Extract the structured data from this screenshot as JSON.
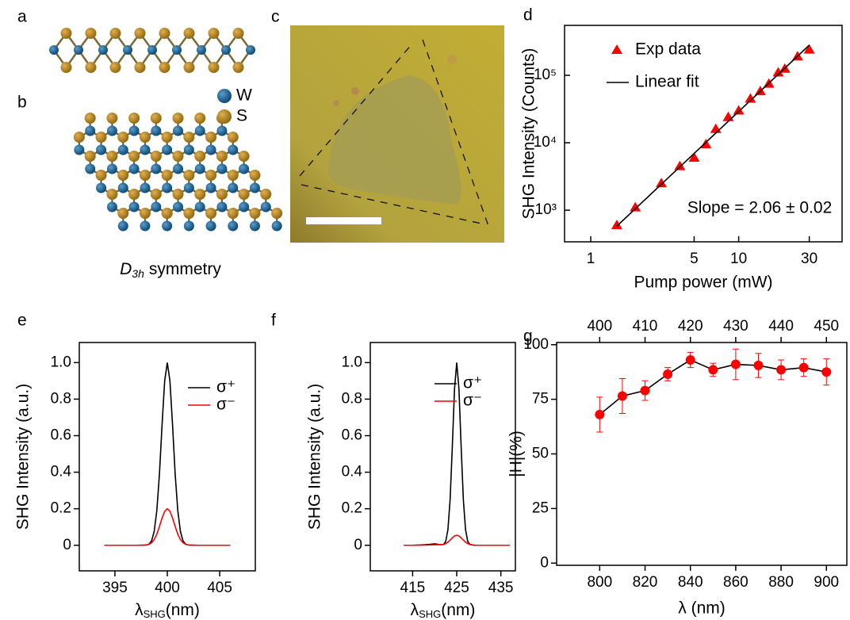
{
  "panel_labels": [
    "a",
    "b",
    "c",
    "d",
    "e",
    "f",
    "g"
  ],
  "structure": {
    "legend": [
      "W",
      "S"
    ],
    "symmetry": {
      "main": "D",
      "sub": "3h",
      "rest": "symmetry"
    }
  },
  "chart_data": [
    {
      "type": "scatter",
      "xscale": "log",
      "yscale": "log",
      "xlabel": "Pump power (mW)",
      "ylabel": "SHG Intensity (Counts)",
      "xlim": [
        0.665,
        50
      ],
      "ylim": [
        340,
        550000
      ],
      "xticks": [
        1,
        5,
        10,
        30
      ],
      "yticks": [
        {
          "value": 1000,
          "label": "10³"
        },
        {
          "value": 10000,
          "label": "10⁴"
        },
        {
          "value": 100000,
          "label": "10⁵"
        }
      ],
      "legend": "upper left",
      "annotation": "Slope = 2.06 ± 0.02",
      "series": [
        {
          "name": "Exp data",
          "type": "scatter",
          "marker": "triangle",
          "color": "#ff0000",
          "x": [
            1.5,
            2,
            3,
            4,
            5,
            6,
            7,
            8.5,
            10,
            12,
            14,
            16,
            18.5,
            20.5,
            25,
            30
          ],
          "values": [
            600,
            1100,
            2500,
            4500,
            6000,
            9500,
            16000,
            24000,
            30000,
            45000,
            58000,
            75000,
            110000,
            125000,
            190000,
            240000
          ]
        },
        {
          "name": "Linear fit",
          "type": "line",
          "color": "#000000",
          "x": [
            1.5,
            30
          ],
          "values": [
            580,
            280000
          ]
        }
      ]
    },
    {
      "type": "line",
      "xlabel": {
        "main": "λ",
        "sub": "SHG",
        "rest": "(nm)"
      },
      "ylabel": "SHG Intensity (a.u.)",
      "xlim": [
        391.6,
        408.4
      ],
      "ylim": [
        -0.14,
        1.11
      ],
      "xticks": [
        395,
        400,
        405
      ],
      "yticks": [
        0,
        0.2,
        0.4,
        0.6,
        0.8,
        {
          "value": 1,
          "label": "1.0"
        }
      ],
      "legend": "upper right",
      "x": [
        394,
        395,
        396,
        397,
        397.5,
        398,
        398.25,
        398.5,
        398.75,
        399,
        399.25,
        399.5,
        399.75,
        400,
        400.25,
        400.5,
        400.75,
        401,
        401.25,
        401.5,
        401.75,
        402,
        402.5,
        403,
        404,
        405,
        406
      ],
      "series": [
        {
          "name": "σ⁺",
          "color": "#000000",
          "values": [
            0,
            0,
            0,
            0,
            0,
            0.001,
            0.006,
            0.024,
            0.076,
            0.19,
            0.39,
            0.66,
            0.9,
            1,
            0.9,
            0.66,
            0.39,
            0.19,
            0.076,
            0.024,
            0.006,
            0.001,
            0,
            0,
            0,
            0,
            0
          ]
        },
        {
          "name": "σ⁻",
          "color": "#ff0000",
          "values": [
            0,
            0,
            0,
            0,
            0.001,
            0.002,
            0.005,
            0.014,
            0.031,
            0.061,
            0.103,
            0.149,
            0.186,
            0.2,
            0.186,
            0.149,
            0.103,
            0.061,
            0.031,
            0.014,
            0.005,
            0.002,
            0.001,
            0,
            0,
            0,
            0
          ]
        }
      ]
    },
    {
      "type": "line",
      "xlabel": {
        "main": "λ",
        "sub": "SHG",
        "rest": "(nm)"
      },
      "ylabel": "SHG Intensity (a.u.)",
      "xlim": [
        405.4,
        438.3
      ],
      "ylim": [
        -0.14,
        1.11
      ],
      "xticks": [
        415,
        425,
        435
      ],
      "yticks": [
        0,
        0.2,
        0.4,
        0.6,
        0.8,
        {
          "value": 1,
          "label": "1.0"
        }
      ],
      "legend": "upper right",
      "x": [
        413,
        415,
        417,
        419,
        420,
        421,
        422,
        422.5,
        423,
        423.5,
        424,
        424.5,
        425,
        425.5,
        426,
        426.5,
        427,
        427.5,
        428,
        429,
        430,
        431,
        433,
        435,
        437
      ],
      "series": [
        {
          "name": "σ⁺",
          "color": "#000000",
          "values": [
            0,
            0,
            0.002,
            0.005,
            0.008,
            0.004,
            0.004,
            0.021,
            0.085,
            0.25,
            0.54,
            0.857,
            1,
            0.857,
            0.54,
            0.25,
            0.085,
            0.021,
            0.004,
            0,
            0,
            0,
            0,
            0,
            0
          ]
        },
        {
          "name": "σ⁻",
          "color": "#ff0000",
          "values": [
            0,
            0,
            0.001,
            0.002,
            0.003,
            0.003,
            0.004,
            0.009,
            0.017,
            0.028,
            0.041,
            0.051,
            0.055,
            0.051,
            0.041,
            0.028,
            0.017,
            0.009,
            0.004,
            0.001,
            0,
            0,
            0,
            0,
            0
          ]
        }
      ]
    },
    {
      "type": "errorbar",
      "xlabel": "λ (nm)",
      "ylabel": "|H|(%)",
      "xlim": [
        781,
        909
      ],
      "ylim": [
        -1,
        101
      ],
      "xticks": [
        800,
        820,
        840,
        860,
        880,
        900
      ],
      "x2lim": [
        390.5,
        454.5
      ],
      "x2ticks": [
        400,
        410,
        420,
        430,
        440,
        450
      ],
      "yticks": [
        0,
        25,
        50,
        75,
        100
      ],
      "x": [
        800,
        810,
        820,
        830,
        840,
        850,
        860,
        870,
        880,
        890,
        900
      ],
      "series": [
        {
          "color": "#ff0000",
          "line_color": "#000000",
          "values": [
            68,
            76.5,
            79,
            86.5,
            93,
            88.5,
            91,
            90.5,
            88.5,
            89.5,
            87.5
          ],
          "errors": [
            8,
            8,
            4.5,
            3,
            3.5,
            3,
            7,
            5.5,
            4.5,
            4,
            6
          ]
        }
      ]
    }
  ]
}
